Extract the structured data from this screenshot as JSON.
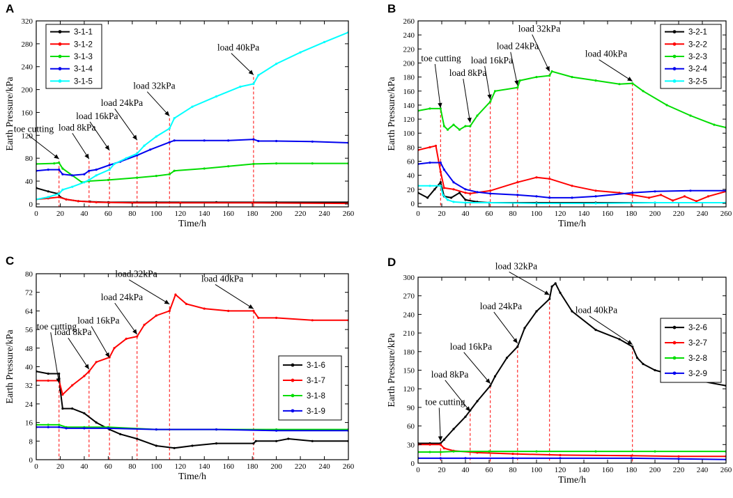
{
  "chart_data": [
    {
      "type": "line",
      "panel_label": "A",
      "xlabel": "Time/h",
      "ylabel": "Earth Pressure/kPa",
      "xlim": [
        0,
        260
      ],
      "ylim": [
        -5,
        320
      ],
      "xticks": [
        0,
        20,
        40,
        60,
        80,
        100,
        120,
        140,
        160,
        180,
        200,
        220,
        240,
        260
      ],
      "yticks": [
        0,
        40,
        80,
        120,
        160,
        200,
        240,
        280,
        320
      ],
      "legend_position": "top-left",
      "event_lines": [
        19,
        44,
        61,
        84,
        111,
        181
      ],
      "annotations": [
        {
          "text": "toe cutting",
          "x": 19,
          "y": 75
        },
        {
          "text": "load 8kPa",
          "x": 44,
          "y": 75
        },
        {
          "text": "load 16kPa",
          "x": 61,
          "y": 90
        },
        {
          "text": "load 24kPa",
          "x": 84,
          "y": 108
        },
        {
          "text": "load 32kPa",
          "x": 111,
          "y": 150
        },
        {
          "text": "load 40kPa",
          "x": 181,
          "y": 222
        }
      ],
      "series": [
        {
          "name": "3-1-1",
          "color": "#000000",
          "marker": true,
          "x": [
            0,
            10,
            18,
            20,
            25,
            35,
            45,
            60,
            100,
            150,
            200,
            260
          ],
          "values": [
            28,
            22,
            18,
            12,
            8,
            5,
            4,
            3,
            3,
            3,
            3,
            3
          ]
        },
        {
          "name": "3-1-2",
          "color": "#ff0000",
          "marker": true,
          "x": [
            0,
            10,
            19,
            25,
            35,
            50,
            80,
            120,
            180,
            260
          ],
          "values": [
            8,
            10,
            12,
            8,
            5,
            3,
            2,
            2,
            2,
            1
          ]
        },
        {
          "name": "3-1-3",
          "color": "#00dd00",
          "marker": true,
          "x": [
            0,
            15,
            19,
            22,
            30,
            38,
            44,
            60,
            84,
            100,
            111,
            115,
            140,
            160,
            181,
            200,
            230,
            260
          ],
          "values": [
            70,
            71,
            72,
            62,
            50,
            38,
            40,
            42,
            46,
            49,
            52,
            58,
            62,
            66,
            70,
            71,
            71,
            71
          ]
        },
        {
          "name": "3-1-4",
          "color": "#0000ee",
          "marker": true,
          "x": [
            0,
            10,
            19,
            22,
            30,
            40,
            44,
            50,
            61,
            70,
            84,
            95,
            111,
            115,
            140,
            160,
            181,
            185,
            200,
            230,
            260
          ],
          "values": [
            58,
            60,
            60,
            52,
            50,
            52,
            58,
            60,
            68,
            74,
            85,
            95,
            108,
            111,
            111,
            111,
            113,
            110,
            110,
            109,
            107
          ]
        },
        {
          "name": "3-1-5",
          "color": "#00ffff",
          "marker": true,
          "x": [
            0,
            10,
            19,
            22,
            30,
            40,
            44,
            50,
            61,
            65,
            75,
            84,
            90,
            100,
            111,
            115,
            130,
            150,
            170,
            181,
            185,
            200,
            220,
            240,
            260
          ],
          "values": [
            8,
            12,
            18,
            25,
            30,
            38,
            42,
            50,
            60,
            70,
            80,
            88,
            102,
            118,
            132,
            150,
            170,
            188,
            205,
            210,
            225,
            245,
            265,
            283,
            300
          ]
        }
      ]
    },
    {
      "type": "line",
      "panel_label": "B",
      "xlabel": "Time/h",
      "ylabel": "Earth Pressure/kPa",
      "xlim": [
        0,
        260
      ],
      "ylim": [
        -5,
        260
      ],
      "xticks": [
        0,
        20,
        40,
        60,
        80,
        100,
        120,
        140,
        160,
        180,
        200,
        220,
        240,
        260
      ],
      "yticks": [
        0,
        20,
        40,
        60,
        80,
        100,
        120,
        140,
        160,
        180,
        200,
        220,
        240,
        260
      ],
      "legend_position": "top-right",
      "event_lines": [
        19,
        44,
        61,
        84,
        111,
        181
      ],
      "annotations": [
        {
          "text": "toe cutting",
          "x": 19,
          "y": 133
        },
        {
          "text": "load 8kPa",
          "x": 44,
          "y": 112
        },
        {
          "text": "load 16kPa",
          "x": 61,
          "y": 145
        },
        {
          "text": "load 24kPa",
          "x": 84,
          "y": 165
        },
        {
          "text": "load 32kPa",
          "x": 111,
          "y": 185
        },
        {
          "text": "load 40kPa",
          "x": 181,
          "y": 171
        }
      ],
      "series": [
        {
          "name": "3-2-1",
          "color": "#000000",
          "marker": true,
          "x": [
            0,
            8,
            14,
            19,
            22,
            28,
            35,
            40,
            50,
            60,
            100,
            150,
            200,
            260
          ],
          "values": [
            15,
            8,
            20,
            30,
            10,
            8,
            15,
            5,
            2,
            1,
            1,
            1,
            1,
            1
          ]
        },
        {
          "name": "3-2-2",
          "color": "#ff0000",
          "marker": true,
          "x": [
            0,
            10,
            15,
            19,
            22,
            30,
            40,
            44,
            61,
            84,
            100,
            111,
            130,
            150,
            170,
            181,
            195,
            205,
            215,
            225,
            235,
            245,
            260
          ],
          "values": [
            76,
            80,
            82,
            45,
            22,
            20,
            15,
            14,
            18,
            30,
            37,
            35,
            25,
            18,
            15,
            12,
            8,
            12,
            4,
            10,
            3,
            10,
            17
          ]
        },
        {
          "name": "3-2-3",
          "color": "#00dd00",
          "marker": true,
          "x": [
            0,
            10,
            19,
            22,
            25,
            30,
            35,
            40,
            44,
            50,
            61,
            65,
            84,
            86,
            100,
            111,
            113,
            130,
            150,
            170,
            181,
            190,
            210,
            230,
            250,
            260
          ],
          "values": [
            132,
            135,
            135,
            110,
            105,
            112,
            105,
            110,
            110,
            125,
            145,
            160,
            165,
            175,
            180,
            182,
            188,
            180,
            175,
            170,
            171,
            160,
            140,
            125,
            112,
            108
          ]
        },
        {
          "name": "3-2-4",
          "color": "#0000ee",
          "marker": true,
          "x": [
            0,
            10,
            19,
            22,
            30,
            40,
            50,
            61,
            84,
            100,
            111,
            130,
            150,
            181,
            200,
            230,
            260
          ],
          "values": [
            56,
            58,
            58,
            48,
            30,
            20,
            16,
            14,
            12,
            10,
            8,
            8,
            10,
            15,
            17,
            18,
            18
          ]
        },
        {
          "name": "3-2-5",
          "color": "#00ffff",
          "marker": true,
          "x": [
            0,
            10,
            19,
            21,
            25,
            30,
            40,
            60,
            100,
            150,
            200,
            260
          ],
          "values": [
            25,
            25,
            25,
            12,
            5,
            2,
            1,
            1,
            0,
            0,
            1,
            1
          ]
        }
      ]
    },
    {
      "type": "line",
      "panel_label": "C",
      "xlabel": "Time/h",
      "ylabel": "Earth Pressure/kPa",
      "xlim": [
        0,
        260
      ],
      "ylim": [
        0,
        80
      ],
      "xticks": [
        0,
        20,
        40,
        60,
        80,
        100,
        120,
        140,
        160,
        180,
        200,
        220,
        240,
        260
      ],
      "yticks": [
        0,
        8,
        16,
        24,
        32,
        40,
        48,
        56,
        64,
        72,
        80
      ],
      "legend_position": "bottom-right",
      "event_lines": [
        19,
        44,
        61,
        84,
        111,
        181
      ],
      "annotations": [
        {
          "text": "toe cutting",
          "x": 19,
          "y": 32
        },
        {
          "text": "load 8kPa",
          "x": 44,
          "y": 38
        },
        {
          "text": "load 16kPa",
          "x": 61,
          "y": 43
        },
        {
          "text": "load 24kPa",
          "x": 84,
          "y": 53
        },
        {
          "text": "load 32kPa",
          "x": 111,
          "y": 66
        },
        {
          "text": "load 40kPa",
          "x": 181,
          "y": 64
        }
      ],
      "series": [
        {
          "name": "3-1-6",
          "color": "#000000",
          "marker": true,
          "x": [
            0,
            10,
            19,
            20,
            22,
            30,
            40,
            50,
            61,
            70,
            84,
            100,
            115,
            130,
            150,
            181,
            183,
            200,
            210,
            230,
            260
          ],
          "values": [
            38,
            37,
            37,
            30,
            22,
            22,
            20,
            16,
            13,
            11,
            9,
            6,
            5,
            6,
            7,
            7,
            8,
            8,
            9,
            8,
            8
          ]
        },
        {
          "name": "3-1-7",
          "color": "#ff0000",
          "marker": true,
          "x": [
            0,
            10,
            19,
            22,
            30,
            40,
            44,
            50,
            61,
            65,
            75,
            84,
            90,
            100,
            111,
            116,
            125,
            140,
            160,
            181,
            185,
            200,
            230,
            260
          ],
          "values": [
            34,
            34,
            34,
            28,
            32,
            36,
            38,
            42,
            44,
            48,
            52,
            53,
            58,
            62,
            64,
            71,
            67,
            65,
            64,
            64,
            61,
            61,
            60,
            60
          ]
        },
        {
          "name": "3-1-8",
          "color": "#00dd00",
          "marker": true,
          "x": [
            0,
            10,
            19,
            25,
            40,
            60,
            100,
            150,
            200,
            260
          ],
          "values": [
            15,
            15,
            15,
            14,
            14,
            14,
            13,
            13,
            13,
            13
          ]
        },
        {
          "name": "3-1-9",
          "color": "#0000ee",
          "marker": true,
          "x": [
            0,
            10,
            19,
            25,
            40,
            60,
            100,
            150,
            200,
            260
          ],
          "values": [
            14,
            14,
            14,
            13.5,
            13.5,
            13.5,
            13,
            13,
            12.5,
            12.5
          ]
        }
      ]
    },
    {
      "type": "line",
      "panel_label": "D",
      "xlabel": "Time/h",
      "ylabel": "Earth Pressure/kPa",
      "xlim": [
        0,
        260
      ],
      "ylim": [
        0,
        300
      ],
      "xticks": [
        0,
        20,
        40,
        60,
        80,
        100,
        120,
        140,
        160,
        180,
        200,
        220,
        240,
        260
      ],
      "yticks": [
        0,
        30,
        60,
        90,
        120,
        150,
        180,
        210,
        240,
        270,
        300
      ],
      "legend_position": "right",
      "event_lines": [
        19,
        44,
        61,
        84,
        111,
        181
      ],
      "annotations": [
        {
          "text": "toe cutting",
          "x": 19,
          "y": 32
        },
        {
          "text": "load 8kPa",
          "x": 44,
          "y": 80
        },
        {
          "text": "load 16kPa",
          "x": 61,
          "y": 125
        },
        {
          "text": "load 24kPa",
          "x": 84,
          "y": 190
        },
        {
          "text": "load 32kPa",
          "x": 111,
          "y": 268
        },
        {
          "text": "load 40kPa",
          "x": 181,
          "y": 188
        }
      ],
      "series": [
        {
          "name": "3-2-6",
          "color": "#000000",
          "marker": true,
          "x": [
            0,
            10,
            19,
            22,
            30,
            40,
            44,
            50,
            61,
            65,
            75,
            84,
            90,
            100,
            111,
            113,
            116,
            120,
            130,
            150,
            170,
            181,
            185,
            190,
            200,
            220,
            240,
            260
          ],
          "values": [
            32,
            32,
            32,
            38,
            55,
            75,
            85,
            100,
            125,
            140,
            170,
            188,
            218,
            245,
            265,
            285,
            290,
            275,
            245,
            215,
            200,
            188,
            170,
            160,
            150,
            140,
            132,
            125
          ]
        },
        {
          "name": "3-2-7",
          "color": "#ff0000",
          "marker": true,
          "x": [
            0,
            10,
            19,
            22,
            30,
            50,
            80,
            120,
            180,
            220,
            260
          ],
          "values": [
            30,
            30,
            30,
            24,
            20,
            17,
            15,
            13,
            12,
            11,
            11
          ]
        },
        {
          "name": "3-2-8",
          "color": "#00dd00",
          "marker": true,
          "x": [
            0,
            10,
            19,
            30,
            60,
            100,
            150,
            200,
            260
          ],
          "values": [
            18,
            18,
            18,
            19,
            19,
            19,
            19,
            19,
            19
          ]
        },
        {
          "name": "3-2-9",
          "color": "#0000ee",
          "marker": true,
          "x": [
            0,
            19,
            40,
            80,
            120,
            180,
            220,
            260
          ],
          "values": [
            8,
            8,
            8,
            8,
            8,
            8,
            7,
            6
          ]
        }
      ]
    }
  ]
}
